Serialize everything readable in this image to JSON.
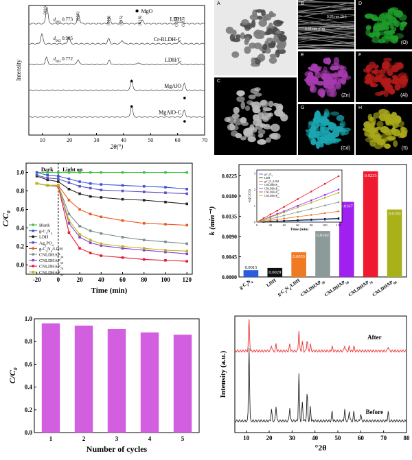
{
  "xrd_top": {
    "traces": [
      {
        "name": "LDH",
        "d_label": "d",
        "d_sub": "003",
        "d_value": "0.773",
        "peaks": [
          [
            11.7,
            1.0
          ],
          [
            23.4,
            0.55
          ],
          [
            34.8,
            0.35
          ],
          [
            39.2,
            0.18
          ],
          [
            46.9,
            0.2
          ],
          [
            60.5,
            0.12
          ],
          [
            61.8,
            0.1
          ]
        ],
        "baseline": 0.86
      },
      {
        "name": "Cr-RLDH-C",
        "d_label": "d",
        "d_sub": "003",
        "d_value": "0.905",
        "peaks": [
          [
            9.8,
            0.6
          ],
          [
            19.8,
            0.4
          ],
          [
            34.5,
            0.3
          ],
          [
            39.5,
            0.2
          ],
          [
            60.5,
            0.14
          ]
        ],
        "baseline": 0.705
      },
      {
        "name": "LDH/C",
        "d_label": "d",
        "d_sub": "003",
        "d_value": "0.772",
        "peaks": [
          [
            11.5,
            0.45
          ],
          [
            23.2,
            0.3
          ],
          [
            34.8,
            0.25
          ],
          [
            45.5,
            0.12
          ],
          [
            60.5,
            0.1
          ]
        ],
        "baseline": 0.545
      },
      {
        "name": "MgAlO",
        "d_label": "",
        "d_sub": "",
        "d_value": "",
        "peaks": [
          [
            43.0,
            0.65
          ],
          [
            62.5,
            0.4
          ]
        ],
        "baseline": 0.345
      },
      {
        "name": "MgAlO-C",
        "d_label": "",
        "d_sub": "",
        "d_value": "",
        "peaks": [
          [
            43.0,
            0.65
          ],
          [
            62.5,
            0.4
          ]
        ],
        "baseline": 0.14
      }
    ],
    "hkl_labels": [
      [
        "(003)",
        11.5
      ],
      [
        "(006)",
        23.5
      ],
      [
        "(009)",
        35
      ],
      [
        "(015)",
        39.5
      ],
      [
        "(018)",
        46.5
      ],
      [
        "(110)",
        60
      ],
      [
        "(113)",
        62.5
      ]
    ],
    "mgo_legend": "MgO",
    "mgo_marks": [
      [
        43,
        0.4
      ],
      [
        62.6,
        0.27
      ],
      [
        43,
        0.205
      ],
      [
        62.6,
        0.09
      ]
    ],
    "x_ticks": [
      "10",
      "20",
      "30",
      "40",
      "50",
      "60",
      "70"
    ],
    "x_label": "2θ(°)",
    "y_label": "Intensity"
  },
  "tem": {
    "panels": [
      {
        "label": "A",
        "element": "",
        "scale": "",
        "color": "#d8d8d8"
      },
      {
        "label": "B",
        "element": "",
        "scale": "",
        "color": "#8a8a8a"
      },
      {
        "label": "D",
        "element": "(O)",
        "scale": "",
        "color": "#1e9c2a"
      },
      {
        "label": "C",
        "element": "",
        "scale": "",
        "color": "#bcbcbc"
      },
      {
        "label": "E",
        "element": "(Zn)",
        "scale": "",
        "color": "#a83bb0"
      },
      {
        "label": "F",
        "element": "(Al)",
        "scale": "",
        "color": "#b21a1a"
      },
      {
        "label": "G",
        "element": "(Cd)",
        "scale": "",
        "color": "#1aa6b0"
      },
      {
        "label": "H",
        "element": "(S)",
        "scale": "",
        "color": "#a8a81a"
      }
    ],
    "b_annotations": [
      "0.26 nm",
      "(Zn)",
      "0.31 nm",
      "(Cd)"
    ]
  },
  "chart_data": [
    {
      "type": "line",
      "title": "",
      "xlabel": "Time (min)",
      "ylabel": "C/C0",
      "xlim": [
        -30,
        125
      ],
      "ylim": [
        -0.1,
        1.1
      ],
      "x_ticks": [
        -20,
        0,
        20,
        40,
        60,
        80,
        100,
        120
      ],
      "y_ticks": [
        0.0,
        0.2,
        0.4,
        0.6,
        0.8,
        1.0
      ],
      "annotations": [
        "Dark",
        "Light on"
      ],
      "x": [
        -20,
        -10,
        0,
        10,
        20,
        30,
        40,
        60,
        80,
        100,
        120
      ],
      "legend_position": "left",
      "series": [
        {
          "name": "Blank",
          "color": "#3cc43c",
          "values": [
            1.0,
            1.0,
            1.0,
            1.0,
            1.0,
            1.0,
            1.0,
            1.0,
            1.0,
            1.0,
            1.0
          ]
        },
        {
          "name": "g-C3N4",
          "color": "#3a55d6",
          "values": [
            1.0,
            0.97,
            0.96,
            0.93,
            0.9,
            0.88,
            0.87,
            0.86,
            0.85,
            0.84,
            0.82
          ]
        },
        {
          "name": "LDH",
          "color": "#222222",
          "values": [
            0.96,
            0.92,
            0.9,
            0.82,
            0.77,
            0.74,
            0.73,
            0.71,
            0.7,
            0.68,
            0.66
          ]
        },
        {
          "name": "Ag3PO4",
          "color": "#5b4ec4",
          "values": [
            0.97,
            0.94,
            0.93,
            0.89,
            0.85,
            0.83,
            0.81,
            0.8,
            0.79,
            0.78,
            0.77
          ]
        },
        {
          "name": "g-C3N4/LDH",
          "color": "#e85a1c",
          "values": [
            0.88,
            0.86,
            0.86,
            0.7,
            0.6,
            0.55,
            0.52,
            0.48,
            0.45,
            0.44,
            0.43
          ]
        },
        {
          "name": "CNLDHAP30",
          "color": "#7a8c8c",
          "values": [
            0.88,
            0.86,
            0.86,
            0.55,
            0.42,
            0.37,
            0.34,
            0.3,
            0.27,
            0.25,
            0.23
          ]
        },
        {
          "name": "CNLDHAP50",
          "color": "#8b3ad6",
          "values": [
            0.88,
            0.86,
            0.86,
            0.45,
            0.3,
            0.24,
            0.21,
            0.18,
            0.16,
            0.14,
            0.12
          ]
        },
        {
          "name": "CNLDHAP70",
          "color": "#e8162e",
          "values": [
            0.88,
            0.86,
            0.85,
            0.35,
            0.18,
            0.13,
            0.1,
            0.08,
            0.06,
            0.05,
            0.04
          ]
        },
        {
          "name": "CNLDHAP90",
          "color": "#b5b81a",
          "values": [
            0.88,
            0.86,
            0.86,
            0.48,
            0.33,
            0.27,
            0.23,
            0.2,
            0.18,
            0.16,
            0.15
          ]
        }
      ]
    },
    {
      "type": "bar",
      "title": "",
      "xlabel": "",
      "ylabel": "k (min⁻¹)",
      "ylim": [
        0,
        0.025
      ],
      "y_ticks": [
        "0.0000",
        "0.0045",
        "0.0090",
        "0.0135",
        "0.0180",
        "0.0225"
      ],
      "categories": [
        "g-C3N4",
        "LDH",
        "g-C3N4/LDH",
        "CNLDHAP30",
        "CNLDHAP50",
        "CNLDHAP70",
        "CNLDHAP90"
      ],
      "values": [
        0.0015,
        0.002,
        0.0055,
        0.0102,
        0.0167,
        0.0235,
        0.015
      ],
      "value_labels": [
        "0.0015",
        "0.0020",
        "0.0055",
        "0.0102",
        "0.0167",
        "0.0235",
        "0.0150"
      ],
      "colors": [
        "#2a5ce0",
        "#111111",
        "#f07a22",
        "#8c9a9a",
        "#a020f0",
        "#f01a30",
        "#a8b01a"
      ],
      "inset": {
        "type": "scatter",
        "xlabel": "Time (min)",
        "ylabel": "-ln(C/C0)",
        "x_ticks": [
          "0",
          "20",
          "40",
          "60",
          "80",
          "100",
          "120"
        ],
        "y_ticks": [
          "0",
          "1",
          "2",
          "3"
        ],
        "legend": [
          "g-C3N4",
          "LDH",
          "g-C3N4/LDH",
          "CNLDHAP30",
          "CNLDHAP50",
          "CNLDHAP70",
          "CNLDHAP90"
        ]
      }
    },
    {
      "type": "bar",
      "title": "",
      "xlabel": "Number of cycles",
      "ylabel": "C/C0",
      "ylim": [
        0,
        1.0
      ],
      "y_ticks": [
        "0.0",
        "0.2",
        "0.4",
        "0.6",
        "0.8",
        "1.0"
      ],
      "categories": [
        "1",
        "2",
        "3",
        "4",
        "5"
      ],
      "values": [
        0.96,
        0.94,
        0.91,
        0.88,
        0.86
      ],
      "color": "#d25ee0"
    },
    {
      "type": "line",
      "title": "",
      "xlabel": "°2θ",
      "ylabel": "Intensity (a.u.)",
      "xlim": [
        5,
        80
      ],
      "x_ticks": [
        "10",
        "20",
        "30",
        "40",
        "50",
        "60",
        "70",
        "80"
      ],
      "series": [
        {
          "name": "After",
          "color": "#e83030",
          "baseline": 0.7,
          "peaks": [
            [
              11.2,
              0.28
            ],
            [
              21,
              0.05
            ],
            [
              23,
              0.06
            ],
            [
              29,
              0.06
            ],
            [
              33,
              0.18
            ],
            [
              34.5,
              0.08
            ],
            [
              36.6,
              0.1
            ],
            [
              38,
              0.06
            ],
            [
              47.5,
              0.04
            ],
            [
              53,
              0.05
            ],
            [
              55,
              0.04
            ],
            [
              57,
              0.04
            ],
            [
              72,
              0.04
            ]
          ]
        },
        {
          "name": "Before",
          "color": "#222222",
          "baseline": 0.1,
          "peaks": [
            [
              11.2,
              0.65
            ],
            [
              21,
              0.1
            ],
            [
              23,
              0.13
            ],
            [
              29,
              0.12
            ],
            [
              33,
              0.4
            ],
            [
              34.5,
              0.16
            ],
            [
              36.6,
              0.25
            ],
            [
              38,
              0.12
            ],
            [
              47.5,
              0.08
            ],
            [
              53,
              0.1
            ],
            [
              55,
              0.09
            ],
            [
              57,
              0.08
            ],
            [
              60,
              0.06
            ],
            [
              72,
              0.08
            ]
          ]
        }
      ]
    }
  ]
}
